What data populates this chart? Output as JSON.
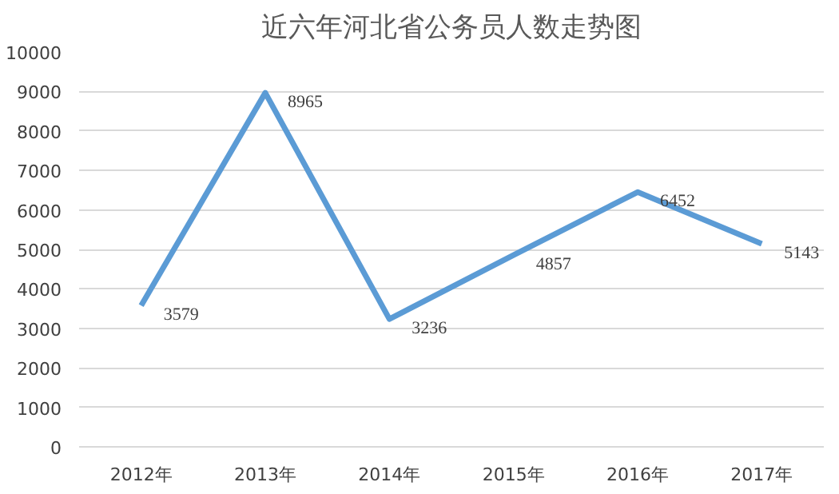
{
  "chart_data": {
    "type": "line",
    "title": "近六年河北省公务员人数走势图",
    "categories": [
      "2012年",
      "2013年",
      "2014年",
      "2015年",
      "2016年",
      "2017年"
    ],
    "series": [
      {
        "color": "#5b9bd5",
        "values": [
          3579,
          8965,
          3236,
          4857,
          6452,
          5143
        ]
      }
    ],
    "ylim": [
      0,
      10000
    ],
    "yticks": [
      0,
      1000,
      2000,
      3000,
      4000,
      5000,
      6000,
      7000,
      8000,
      9000,
      10000
    ],
    "grid": "y",
    "data_labels": true,
    "marker": "none",
    "line_style": "solid"
  }
}
